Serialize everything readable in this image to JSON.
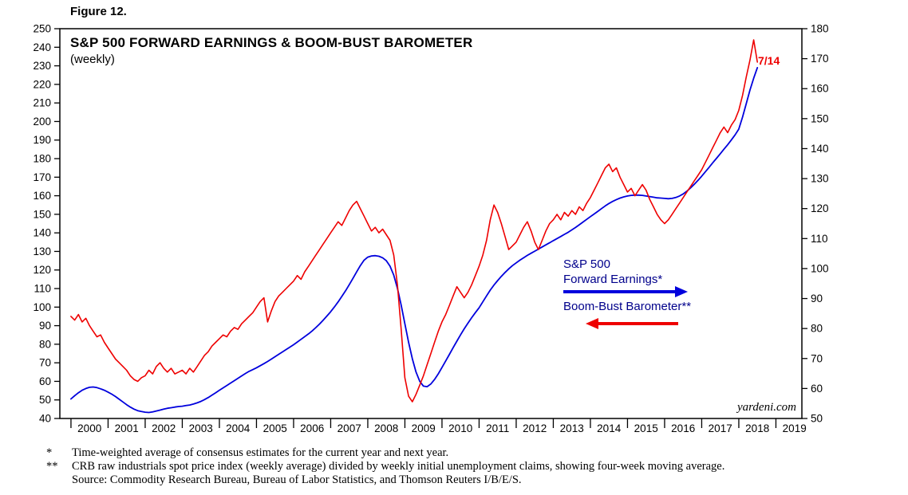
{
  "figure_label": "Figure 12.",
  "title": "S&P 500 FORWARD EARNINGS & BOOM-BUST BAROMETER",
  "subtitle": "(weekly)",
  "annotation": {
    "label": "7/14",
    "color": "#ee0000"
  },
  "watermark": "yardeni.com",
  "legend": {
    "blue": {
      "line1": "S&P 500",
      "line2": "Forward Earnings*",
      "direction": "right",
      "color": "#0000dd"
    },
    "red": {
      "label": "Boom-Bust Barometer**",
      "direction": "left",
      "color": "#ee0000"
    }
  },
  "footnotes": [
    {
      "marker": "*",
      "text": "Time-weighted average of consensus estimates for the current year and next year."
    },
    {
      "marker": "**",
      "text": "CRB raw industrials spot price index (weekly average) divided by weekly initial unemployment claims, showing four-week moving average."
    },
    {
      "marker": "",
      "text": "Source: Commodity Research Bureau, Bureau of Labor Statistics, and Thomson Reuters I/B/E/S."
    }
  ],
  "chart_data": {
    "type": "line",
    "title": "S&P 500 FORWARD EARNINGS & BOOM-BUST BAROMETER",
    "subtitle": "(weekly)",
    "grid": false,
    "x_axis": {
      "min": 1999.7,
      "max": 2019.7,
      "tick_years": [
        2000,
        2001,
        2002,
        2003,
        2004,
        2005,
        2006,
        2007,
        2008,
        2009,
        2010,
        2011,
        2012,
        2013,
        2014,
        2015,
        2016,
        2017,
        2018,
        2019
      ]
    },
    "y_axis_left": {
      "min": 40,
      "max": 250,
      "ticks": [
        40,
        50,
        60,
        70,
        80,
        90,
        100,
        110,
        120,
        130,
        140,
        150,
        160,
        170,
        180,
        190,
        200,
        210,
        220,
        230,
        240,
        250
      ],
      "series": "Boom-Bust Barometer"
    },
    "y_axis_right": {
      "min": 50,
      "max": 180,
      "ticks": [
        50,
        60,
        70,
        80,
        90,
        100,
        110,
        120,
        130,
        140,
        150,
        160,
        170,
        180
      ],
      "series": "S&P 500 Forward Earnings"
    },
    "x_start": 2000.0,
    "x_step": 0.1,
    "last_point_label": "7/14",
    "series": [
      {
        "name": "S&P 500 Forward Earnings",
        "axis": "right",
        "color": "#0000dd",
        "width": 1.8,
        "values": [
          56.5,
          57.6,
          58.6,
          59.4,
          60.0,
          60.4,
          60.5,
          60.3,
          59.9,
          59.4,
          58.8,
          58.1,
          57.3,
          56.4,
          55.5,
          54.6,
          53.8,
          53.1,
          52.6,
          52.3,
          52.1,
          52.0,
          52.2,
          52.5,
          52.8,
          53.1,
          53.4,
          53.6,
          53.8,
          54.0,
          54.1,
          54.3,
          54.5,
          54.8,
          55.2,
          55.7,
          56.3,
          57.0,
          57.8,
          58.6,
          59.4,
          60.2,
          61.0,
          61.8,
          62.6,
          63.4,
          64.2,
          65.0,
          65.7,
          66.3,
          66.9,
          67.6,
          68.3,
          69.0,
          69.8,
          70.6,
          71.4,
          72.2,
          73.0,
          73.8,
          74.6,
          75.5,
          76.4,
          77.3,
          78.2,
          79.2,
          80.3,
          81.5,
          82.8,
          84.2,
          85.6,
          87.2,
          88.9,
          90.7,
          92.6,
          94.6,
          96.7,
          98.9,
          101.0,
          102.8,
          103.8,
          104.2,
          104.3,
          104.1,
          103.6,
          102.6,
          100.8,
          97.8,
          93.4,
          87.8,
          81.6,
          75.4,
          69.9,
          65.5,
          62.4,
          60.8,
          60.6,
          61.5,
          63.0,
          64.9,
          67.0,
          69.2,
          71.4,
          73.6,
          75.8,
          77.9,
          79.9,
          81.8,
          83.6,
          85.3,
          86.9,
          88.9,
          90.9,
          92.8,
          94.5,
          96.0,
          97.4,
          98.7,
          99.9,
          101.0,
          101.9,
          102.8,
          103.6,
          104.4,
          105.1,
          105.8,
          106.5,
          107.2,
          107.9,
          108.6,
          109.3,
          110.0,
          110.7,
          111.4,
          112.1,
          112.9,
          113.7,
          114.6,
          115.5,
          116.4,
          117.3,
          118.2,
          119.1,
          120.0,
          120.9,
          121.7,
          122.4,
          123.0,
          123.5,
          123.9,
          124.2,
          124.4,
          124.5,
          124.5,
          124.4,
          124.2,
          124.0,
          123.8,
          123.6,
          123.5,
          123.4,
          123.3,
          123.4,
          123.7,
          124.2,
          124.9,
          125.8,
          126.9,
          128.1,
          129.4,
          130.8,
          132.3,
          133.8,
          135.3,
          136.8,
          138.3,
          139.8,
          141.3,
          142.9,
          144.6,
          146.5,
          150.5,
          155.0,
          159.5,
          163.5,
          167.0
        ]
      },
      {
        "name": "Boom-Bust Barometer",
        "axis": "left",
        "color": "#ee0000",
        "width": 1.6,
        "values": [
          95,
          93,
          96,
          92,
          94,
          90,
          87,
          84,
          85,
          81,
          78,
          75,
          72,
          70,
          68,
          66,
          63,
          61,
          60,
          62,
          63,
          66,
          64,
          68,
          70,
          67,
          65,
          67,
          64,
          65,
          66,
          64,
          67,
          65,
          68,
          71,
          74,
          76,
          79,
          81,
          83,
          85,
          84,
          87,
          89,
          88,
          91,
          93,
          95,
          97,
          100,
          103,
          105,
          92,
          98,
          103,
          106,
          108,
          110,
          112,
          114,
          117,
          115,
          119,
          122,
          125,
          128,
          131,
          134,
          137,
          140,
          143,
          146,
          144,
          148,
          152,
          155,
          157,
          153,
          149,
          145,
          141,
          143,
          140,
          142,
          139,
          136,
          128,
          112,
          88,
          62,
          52,
          49,
          53,
          58,
          63,
          69,
          75,
          81,
          87,
          92,
          96,
          101,
          106,
          111,
          108,
          105,
          108,
          112,
          117,
          122,
          128,
          136,
          147,
          155,
          151,
          145,
          138,
          131,
          133,
          135,
          139,
          143,
          146,
          141,
          135,
          131,
          136,
          141,
          145,
          147,
          150,
          147,
          151,
          149,
          152,
          150,
          154,
          152,
          156,
          159,
          163,
          167,
          171,
          175,
          177,
          173,
          175,
          170,
          166,
          162,
          164,
          160,
          163,
          166,
          163,
          158,
          154,
          150,
          147,
          145,
          147,
          150,
          153,
          156,
          159,
          162,
          165,
          168,
          171,
          174,
          178,
          182,
          186,
          190,
          194,
          197,
          194,
          198,
          201,
          206,
          214,
          224,
          233,
          244,
          232
        ]
      }
    ]
  }
}
